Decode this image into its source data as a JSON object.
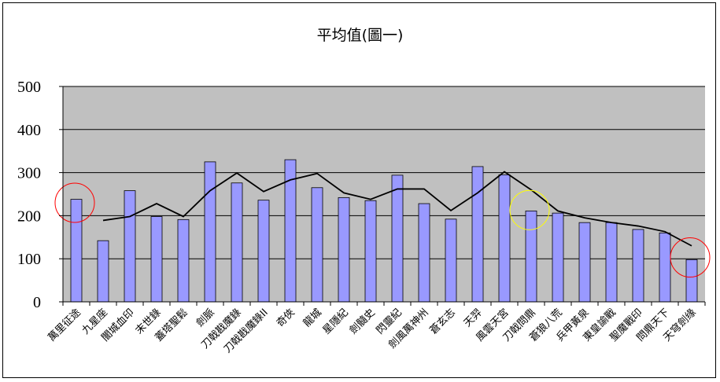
{
  "chart_data": {
    "type": "bar",
    "title": "平均值(圖一)",
    "categories": [
      "萬里征途",
      "九星座",
      "闇城血印",
      "末世錄",
      "蓋塔聖鬆",
      "劍脈",
      "刀戟戡魔錄",
      "刀戟戡魔錄II",
      "奇俠",
      "龍城",
      "星隱紀",
      "劍髓史",
      "閃靈紀",
      "劍風萬神州",
      "蒼玄志",
      "天羿",
      "風雲天宮",
      "刀戟問鼎",
      "蒼狼八荒",
      "兵甲黃泉",
      "東皇諭戰",
      "聖魔戰印",
      "問鼎天下",
      "天穹劍缘"
    ],
    "ylim": [
      0,
      500
    ],
    "yticks": [
      "500",
      "400",
      "300",
      "200",
      "100",
      "0"
    ],
    "grid": true,
    "series": [
      {
        "type": "bar",
        "values": [
          238,
          142,
          258,
          198,
          191,
          325,
          276,
          236,
          330,
          265,
          242,
          235,
          294,
          228,
          192,
          314,
          295,
          211,
          206,
          184,
          184,
          168,
          160,
          98
        ]
      },
      {
        "type": "line",
        "values": [
          null,
          189,
          198,
          228,
          198,
          258,
          299,
          256,
          283,
          298,
          253,
          238,
          262,
          262,
          212,
          253,
          302,
          260,
          211,
          195,
          184,
          176,
          163,
          130
        ]
      }
    ],
    "colors": {
      "bar": "#9999ff",
      "plot_bg": "#c0c0c0",
      "line": "#000000",
      "circle_red": "#ff0000",
      "circle_yellow": "#ffff00"
    },
    "annotations": [
      {
        "type": "circle",
        "category": "萬里征途",
        "value": 230,
        "color": "#ff0000"
      },
      {
        "type": "circle",
        "category": "刀戟問鼎",
        "value": 213,
        "color": "#ffff00"
      },
      {
        "type": "circle",
        "category": "天穹劍缘",
        "value": 103,
        "color": "#ff0000"
      }
    ]
  }
}
